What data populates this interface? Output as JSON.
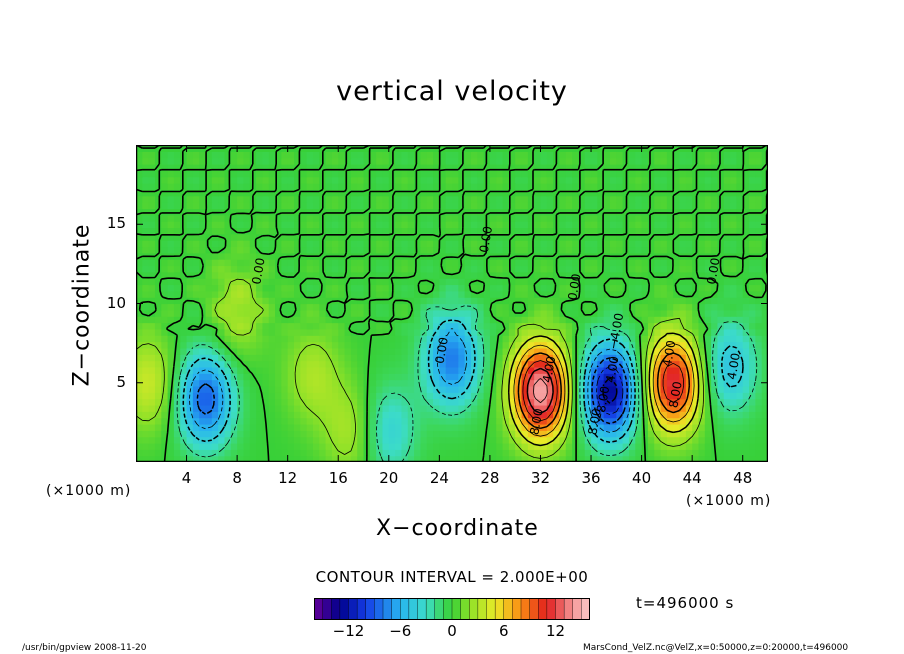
{
  "chart_data": {
    "type": "heatmap",
    "title": "vertical velocity",
    "xlabel": "X−coordinate",
    "ylabel": "Z−coordinate",
    "x_unit_left": "(×1000 m)",
    "x_unit_right": "(×1000 m)",
    "xlim": [
      0,
      50
    ],
    "ylim": [
      0,
      20
    ],
    "x_ticks": [
      "4",
      "8",
      "12",
      "16",
      "20",
      "24",
      "28",
      "32",
      "36",
      "40",
      "44",
      "48"
    ],
    "x_tick_values": [
      4,
      8,
      12,
      16,
      20,
      24,
      28,
      32,
      36,
      40,
      44,
      48
    ],
    "y_ticks": [
      "5",
      "10",
      "15"
    ],
    "y_tick_values": [
      5,
      10,
      15
    ],
    "contour_interval": "CONTOUR INTERVAL = 2.000E+00",
    "contour_labels": [
      "0.00",
      "0.00",
      "0.00",
      "0.00",
      "4.00",
      "8.00",
      "4.00",
      "8.00",
      "4.00",
      "8.00",
      "4.00",
      "0.00",
      "−4.00",
      "−8.00"
    ],
    "colorbar": {
      "range": [
        -16,
        16
      ],
      "ticks": [
        "−12",
        "−6",
        "0",
        "6",
        "12"
      ],
      "tick_values": [
        -12,
        -6,
        0,
        6,
        12
      ]
    },
    "features": [
      {
        "x": 32.0,
        "z": 4.5,
        "w": 15
      },
      {
        "x": 42.5,
        "z": 5.0,
        "w": 12
      },
      {
        "x": 37.5,
        "z": 4.5,
        "w": -13
      },
      {
        "x": 25.0,
        "z": 6.5,
        "w": -8
      },
      {
        "x": 5.5,
        "z": 4.0,
        "w": -9
      },
      {
        "x": 47.0,
        "z": 6.0,
        "w": -5
      },
      {
        "x": 14.0,
        "z": 5.5,
        "w": 3
      },
      {
        "x": 1.0,
        "z": 5.0,
        "w": 4
      },
      {
        "x": 17.0,
        "z": 2.0,
        "w": 3
      },
      {
        "x": 20.0,
        "z": 2.0,
        "w": -4
      },
      {
        "x": 8.0,
        "z": 9.5,
        "w": 3
      }
    ]
  },
  "time_label": "t=496000  s",
  "footer": {
    "left": "/usr/bin/gpview   2008-11-20",
    "right": "MarsCond_VelZ.nc@VelZ,x=0:50000,z=0:20000,t=496000"
  }
}
